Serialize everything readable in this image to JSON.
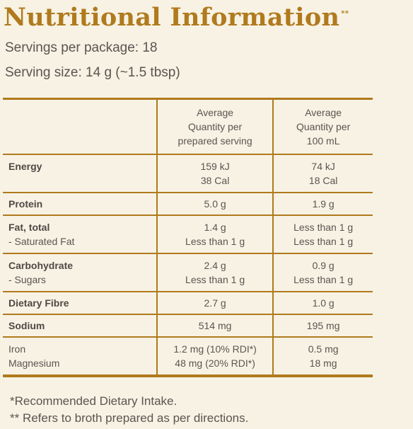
{
  "header": {
    "title": "Nutritional Information",
    "title_marker": "**",
    "servings": "Servings per package: 18",
    "serving_size": "Serving size:  14 g  (~1.5 tbsp)"
  },
  "table": {
    "col_serving_header": [
      "Average",
      "Quantity per",
      "prepared serving"
    ],
    "col_100_header": [
      "Average",
      "Quantity per",
      "100 mL"
    ],
    "energy": {
      "label": "Energy",
      "serving": [
        "159 kJ",
        "38 Cal"
      ],
      "per100": [
        "74 kJ",
        "18 Cal"
      ]
    },
    "protein": {
      "label": "Protein",
      "serving": "5.0 g",
      "per100": "1.9 g"
    },
    "fat": {
      "label": "Fat, total",
      "sub_label": " - Saturated Fat",
      "serving": [
        "1.4 g",
        "Less than 1 g"
      ],
      "per100": [
        "Less than 1 g",
        "Less than 1 g"
      ]
    },
    "carb": {
      "label": "Carbohydrate",
      "sub_label": " -  Sugars",
      "serving": [
        "2.4 g",
        "Less than 1 g"
      ],
      "per100": [
        "0.9 g",
        "Less than 1 g"
      ]
    },
    "fibre": {
      "label": "Dietary Fibre",
      "serving": "2.7 g",
      "per100": "1.0 g"
    },
    "sodium": {
      "label": "Sodium",
      "serving": "514 mg",
      "per100": "195 mg"
    },
    "minerals": {
      "label": [
        "Iron",
        "Magnesium"
      ],
      "serving": [
        "1.2 mg (10% RDI*)",
        "48 mg (20% RDI*)"
      ],
      "per100": [
        "0.5 mg",
        "18 mg"
      ]
    }
  },
  "footnotes": {
    "rdi": "*Recommended Dietary Intake.",
    "broth": "** Refers to broth prepared as per directions."
  },
  "colors": {
    "accent": "#b07a1d",
    "background": "#f7f2e4",
    "text": "#5a5550"
  }
}
